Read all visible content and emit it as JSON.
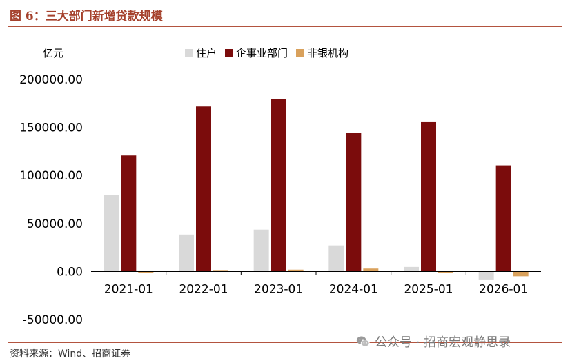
{
  "header": {
    "title": "图 6：三大部门新增贷款规模"
  },
  "chart_data": {
    "type": "bar",
    "unit_label": "亿元",
    "categories": [
      "2021-01",
      "2022-01",
      "2023-01",
      "2024-01",
      "2025-01",
      "2026-01"
    ],
    "series": [
      {
        "name": "住户",
        "color": "#d9d9d9",
        "values": [
          79600,
          38500,
          43600,
          27100,
          4700,
          -9000
        ]
      },
      {
        "name": "企事业部门",
        "color": "#7b0c0c",
        "values": [
          120800,
          171800,
          179800,
          144000,
          155500,
          110500
        ]
      },
      {
        "name": "非银机构",
        "color": "#d9a15c",
        "values": [
          -1500,
          1500,
          1900,
          3000,
          -1500,
          -5000
        ]
      }
    ],
    "yticks": [
      "200000.00",
      "150000.00",
      "100000.00",
      "50000.00",
      "0.00",
      "-50000.00"
    ],
    "ylim": [
      -50000,
      200000
    ],
    "legend_position": "top",
    "grid": false
  },
  "footer": {
    "source": "资料来源：Wind、招商证券",
    "watermark": "公众号 · 招商宏观静思录"
  }
}
